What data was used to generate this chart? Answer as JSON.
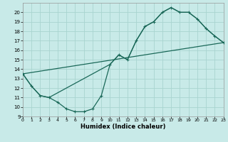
{
  "bg_color": "#c8eae8",
  "grid_color": "#a8d4d0",
  "line_color": "#1a6858",
  "xlabel": "Humidex (Indice chaleur)",
  "xlim": [
    0,
    23
  ],
  "ylim": [
    9,
    21
  ],
  "xticks": [
    0,
    1,
    2,
    3,
    4,
    5,
    6,
    7,
    8,
    9,
    10,
    11,
    12,
    13,
    14,
    15,
    16,
    17,
    18,
    19,
    20,
    21,
    22,
    23
  ],
  "yticks": [
    9,
    10,
    11,
    12,
    13,
    14,
    15,
    16,
    17,
    18,
    19,
    20
  ],
  "curve1_x": [
    0,
    1,
    2,
    3,
    4,
    5,
    6,
    7,
    8,
    9,
    10,
    11,
    12,
    13,
    14,
    15,
    16,
    17,
    18,
    19,
    20,
    21,
    22,
    23
  ],
  "curve1_y": [
    13.5,
    12.2,
    11.2,
    11.0,
    10.5,
    9.8,
    9.5,
    9.5,
    9.8,
    11.2,
    14.5,
    15.5,
    15.0,
    17.0,
    18.5,
    19.0,
    20.0,
    20.5,
    20.0,
    20.0,
    19.3,
    18.3,
    17.5,
    16.8
  ],
  "curve2_x": [
    0,
    1,
    2,
    3,
    10,
    11,
    12,
    13,
    14,
    15,
    16,
    17,
    18,
    19,
    20,
    21,
    22,
    23
  ],
  "curve2_y": [
    13.5,
    12.2,
    11.2,
    11.0,
    14.5,
    15.5,
    15.0,
    17.0,
    18.5,
    19.0,
    20.0,
    20.5,
    20.0,
    20.0,
    19.3,
    18.3,
    17.5,
    16.8
  ],
  "curve3_x": [
    0,
    23
  ],
  "curve3_y": [
    13.5,
    16.8
  ]
}
